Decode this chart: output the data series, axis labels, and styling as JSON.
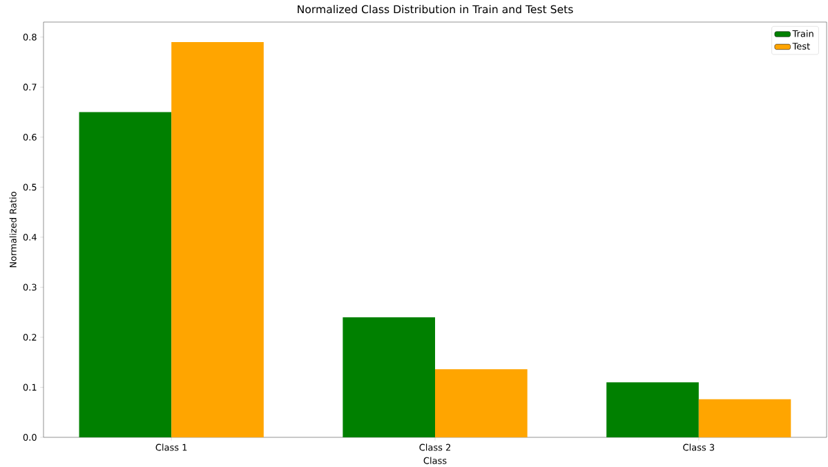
{
  "chart_data": {
    "type": "bar",
    "title": "Normalized Class Distribution in Train and Test Sets",
    "xlabel": "Class",
    "ylabel": "Normalized Ratio",
    "categories": [
      "Class 1",
      "Class 2",
      "Class 3"
    ],
    "series": [
      {
        "name": "Train",
        "color": "#008000",
        "values": [
          0.65,
          0.24,
          0.11
        ]
      },
      {
        "name": "Test",
        "color": "#ffa500",
        "values": [
          0.79,
          0.136,
          0.076
        ]
      }
    ],
    "ylim": [
      0,
      0.83
    ],
    "yticks": [
      {
        "value": 0,
        "label": "0.0"
      },
      0.1,
      0.2,
      0.3,
      0.4,
      0.5,
      0.6,
      0.7,
      0.8
    ],
    "legend": "top right"
  }
}
